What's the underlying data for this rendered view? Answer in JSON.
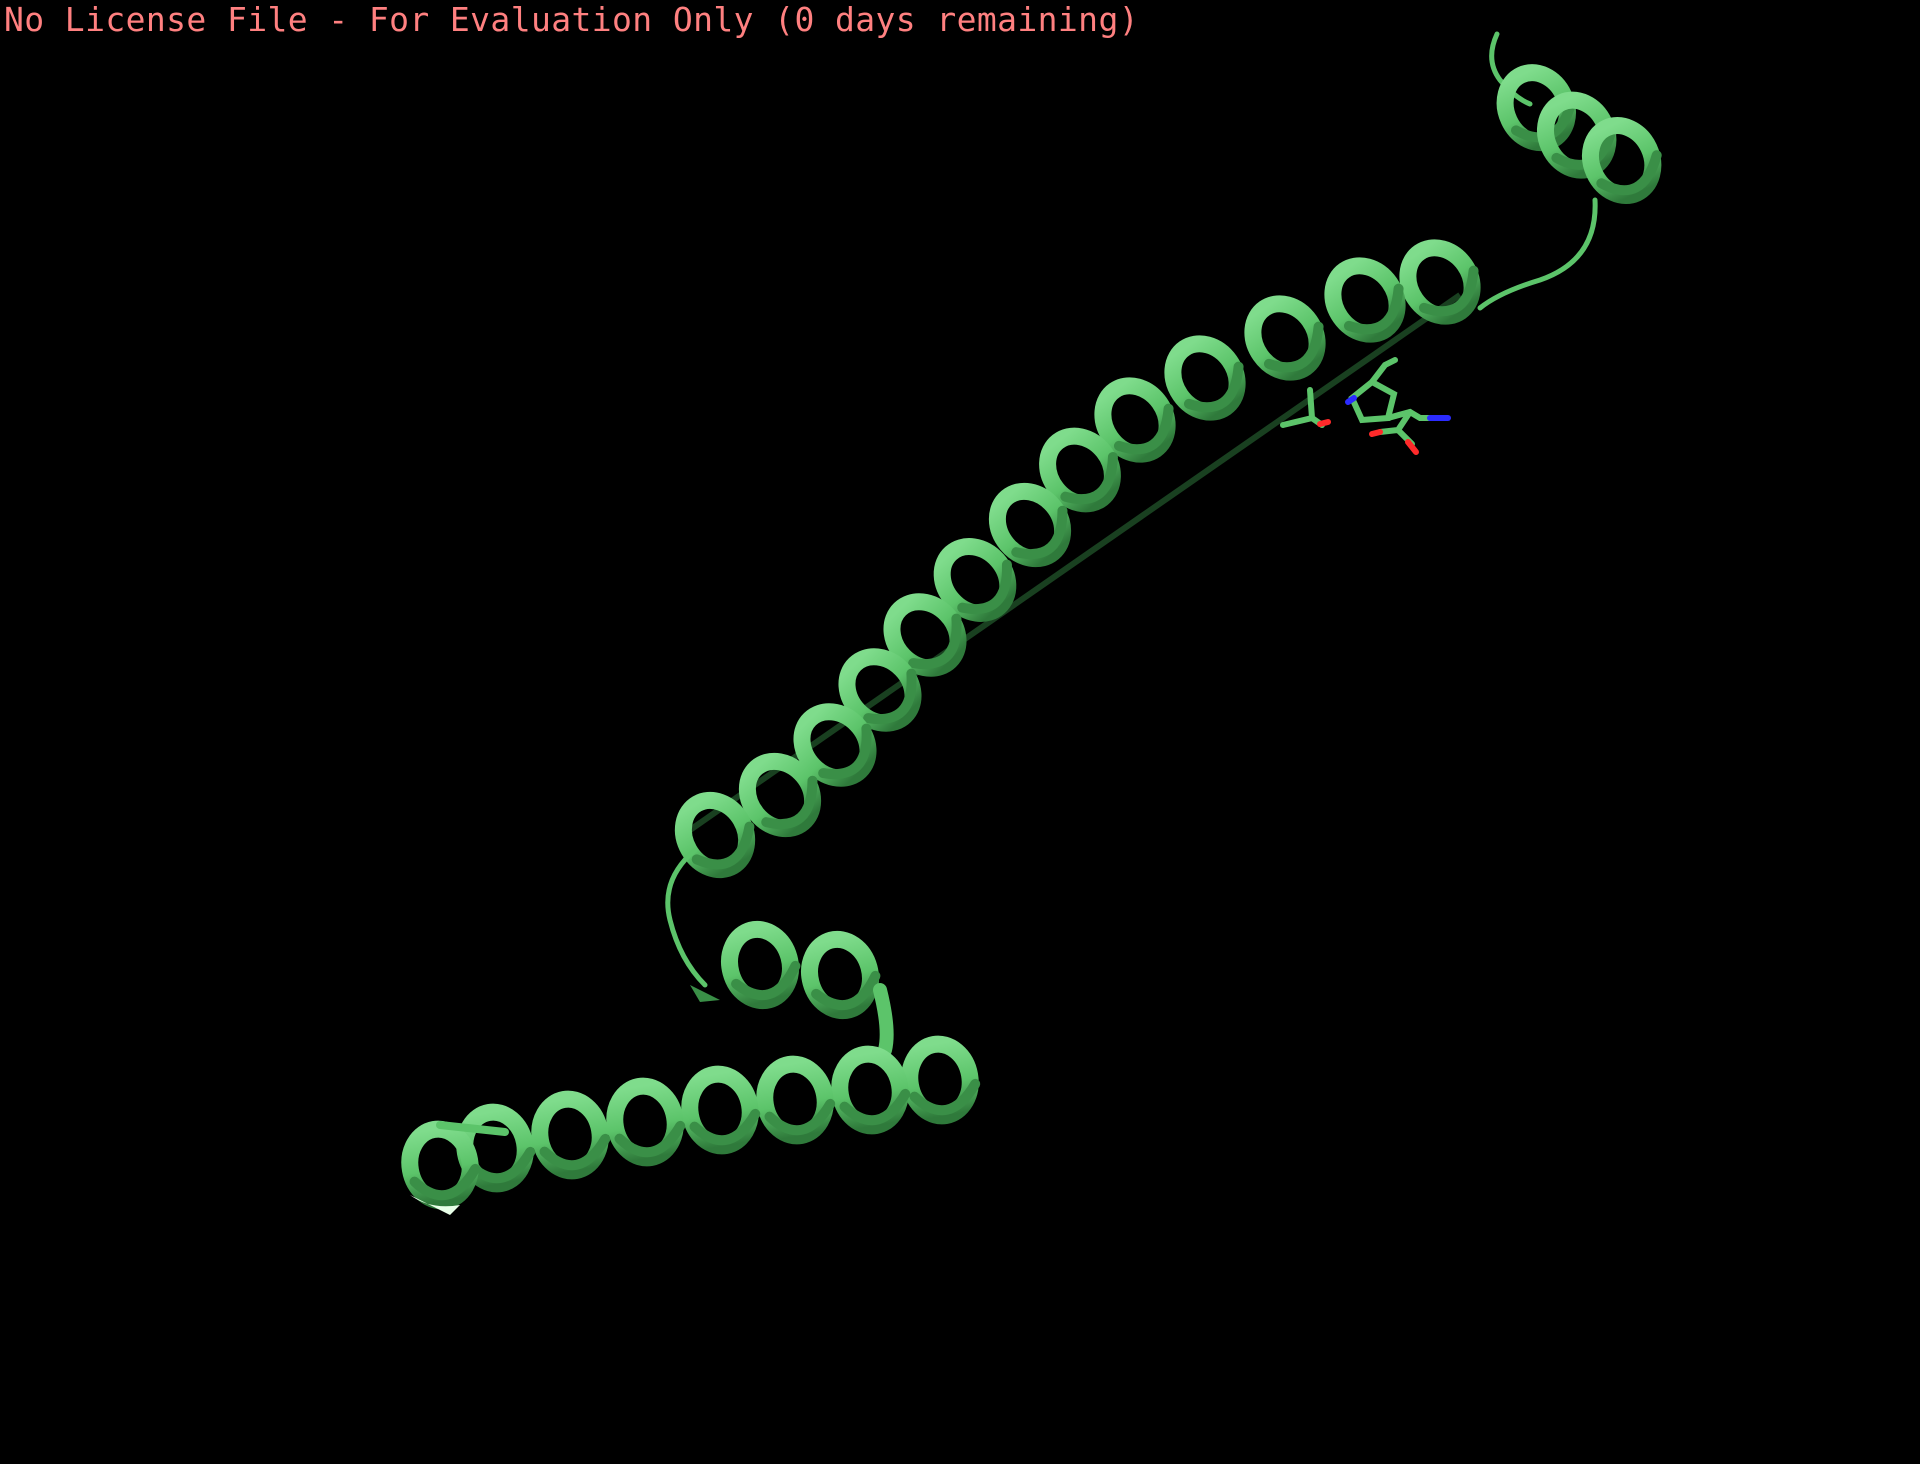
{
  "viewer": {
    "license_message": "No License File - For Evaluation Only (0 days remaining)",
    "background_color": "#000000",
    "license_text_color": "#ff8080"
  },
  "molecule": {
    "representation": "cartoon",
    "secondary_structure": "alpha-helix",
    "ribbon_color": "#5cc46a",
    "ribbon_shadow_color": "#3a8f47",
    "sticks_carbon_color": "#5cc46a",
    "nitrogen_color": "#2b2bff",
    "oxygen_color": "#ff2a2a"
  }
}
